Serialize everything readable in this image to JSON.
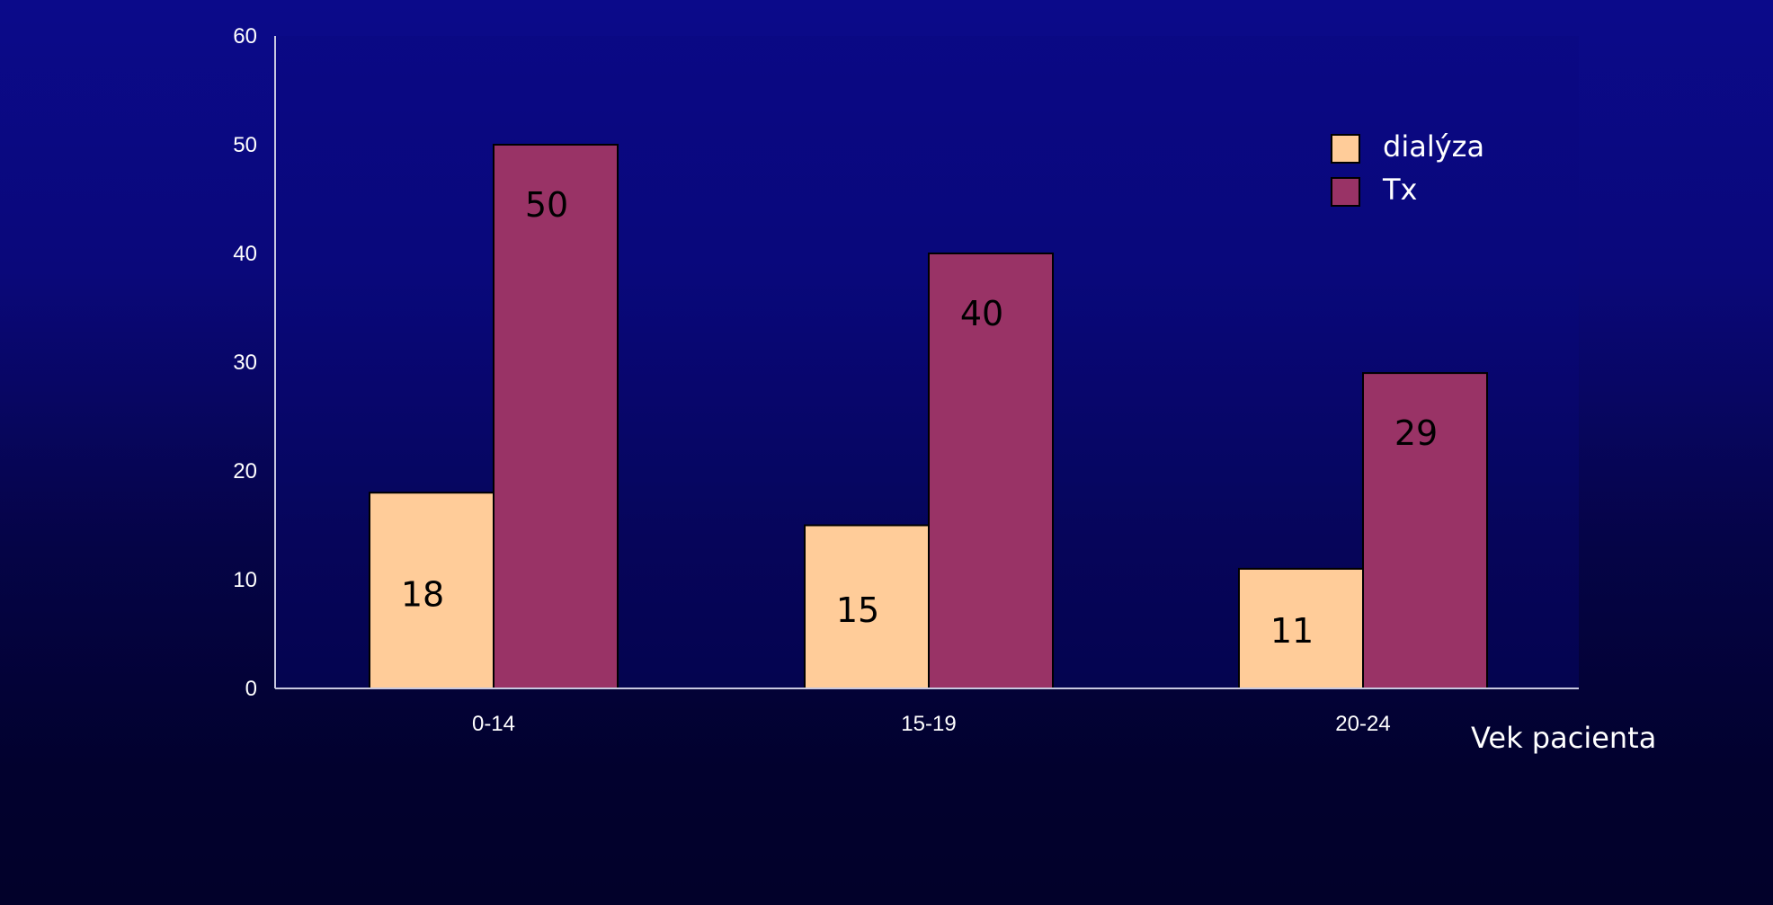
{
  "chart_data": {
    "type": "bar",
    "title": "",
    "xlabel": "Vek pacienta",
    "ylabel": "",
    "categories": [
      "0-14",
      "15-19",
      "20-24"
    ],
    "series": [
      {
        "name": "dialýza",
        "values": [
          18,
          15,
          11
        ],
        "color": "#ffcc99"
      },
      {
        "name": "Tx",
        "values": [
          50,
          40,
          29
        ],
        "color": "#993366"
      }
    ],
    "ylim": [
      0,
      60
    ],
    "yticks": [
      0,
      10,
      20,
      30,
      40,
      50,
      60
    ],
    "grid": false,
    "legend_position": "top-right",
    "data_labels": true,
    "plot_background": "#0a0a7f",
    "axis_color": "#c8c8e0"
  }
}
